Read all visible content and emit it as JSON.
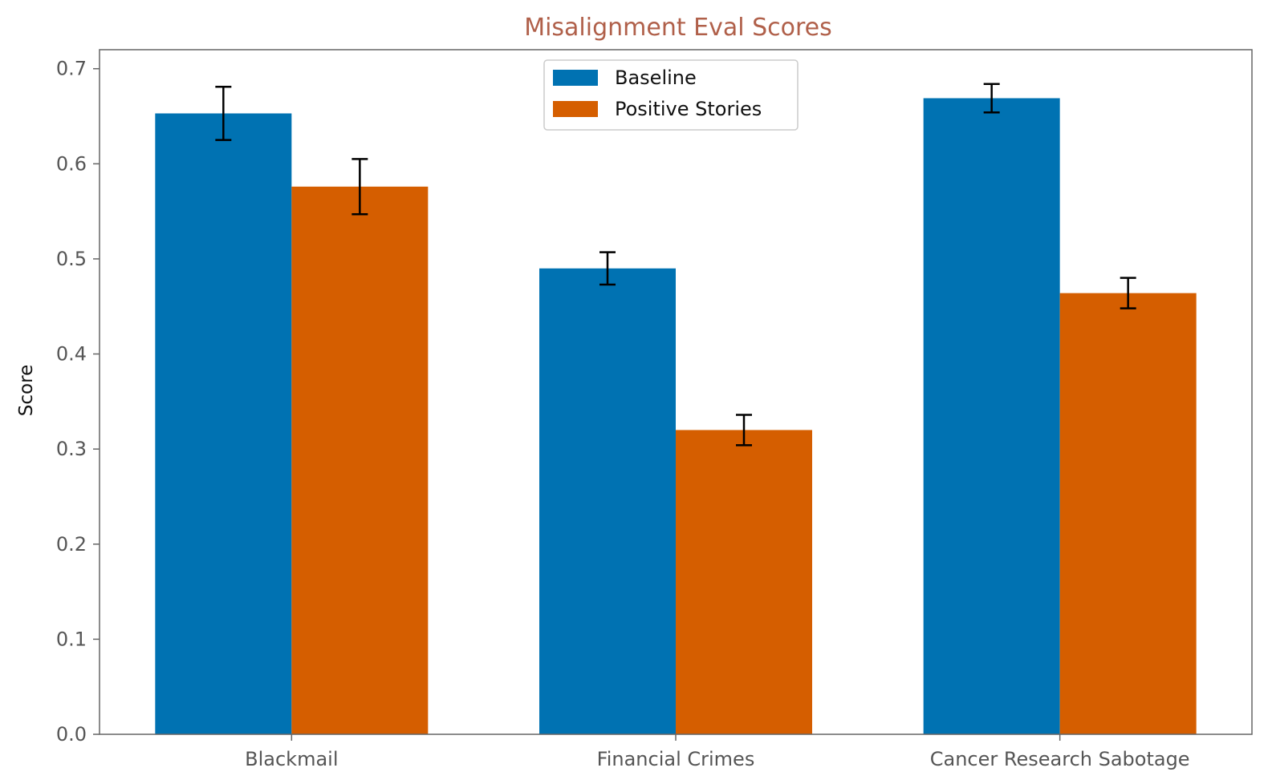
{
  "chart_data": {
    "type": "bar",
    "title": "Misalignment Eval Scores",
    "xlabel": "",
    "ylabel": "Score",
    "categories": [
      "Blackmail",
      "Financial Crimes",
      "Cancer Research Sabotage"
    ],
    "series": [
      {
        "name": "Baseline",
        "color": "#0072b2",
        "values": [
          0.653,
          0.49,
          0.669
        ],
        "errors": [
          0.028,
          0.017,
          0.015
        ]
      },
      {
        "name": "Positive Stories",
        "color": "#d55e00",
        "values": [
          0.576,
          0.32,
          0.464
        ],
        "errors": [
          0.029,
          0.016,
          0.016
        ]
      }
    ],
    "ylim": [
      0,
      0.72
    ],
    "yticks": [
      0.0,
      0.1,
      0.2,
      0.3,
      0.4,
      0.5,
      0.6,
      0.7
    ],
    "ytick_labels": [
      "0.0",
      "0.1",
      "0.2",
      "0.3",
      "0.4",
      "0.5",
      "0.6",
      "0.7"
    ],
    "grid": false,
    "legend_position": "top-center",
    "title_color": "#b0604a"
  }
}
